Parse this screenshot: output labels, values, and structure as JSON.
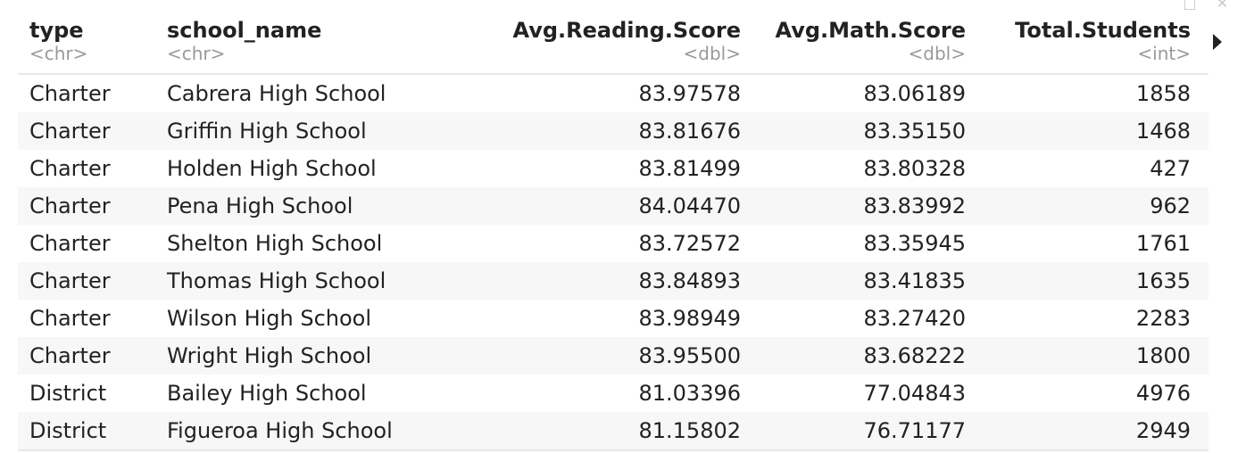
{
  "window": {
    "icons": [
      "popout-icon",
      "close-icon"
    ]
  },
  "table": {
    "columns": [
      {
        "name": "type",
        "type": "<chr>",
        "align": "left"
      },
      {
        "name": "school_name",
        "type": "<chr>",
        "align": "left"
      },
      {
        "name": "Avg.Reading.Score",
        "type": "<dbl>",
        "align": "right"
      },
      {
        "name": "Avg.Math.Score",
        "type": "<dbl>",
        "align": "right"
      },
      {
        "name": "Total.Students",
        "type": "<int>",
        "align": "right"
      }
    ],
    "rows": [
      [
        "Charter",
        "Cabrera High School",
        "83.97578",
        "83.06189",
        "1858"
      ],
      [
        "Charter",
        "Griffin High School",
        "83.81676",
        "83.35150",
        "1468"
      ],
      [
        "Charter",
        "Holden High School",
        "83.81499",
        "83.80328",
        "427"
      ],
      [
        "Charter",
        "Pena High School",
        "84.04470",
        "83.83992",
        "962"
      ],
      [
        "Charter",
        "Shelton High School",
        "83.72572",
        "83.35945",
        "1761"
      ],
      [
        "Charter",
        "Thomas High School",
        "83.84893",
        "83.41835",
        "1635"
      ],
      [
        "Charter",
        "Wilson High School",
        "83.98949",
        "83.27420",
        "2283"
      ],
      [
        "Charter",
        "Wright High School",
        "83.95500",
        "83.68222",
        "1800"
      ],
      [
        "District",
        "Bailey High School",
        "81.03396",
        "77.04843",
        "4976"
      ],
      [
        "District",
        "Figueroa High School",
        "81.15802",
        "76.71177",
        "2949"
      ]
    ]
  },
  "nav": {
    "next_columns_icon": "triangle-right-icon"
  }
}
